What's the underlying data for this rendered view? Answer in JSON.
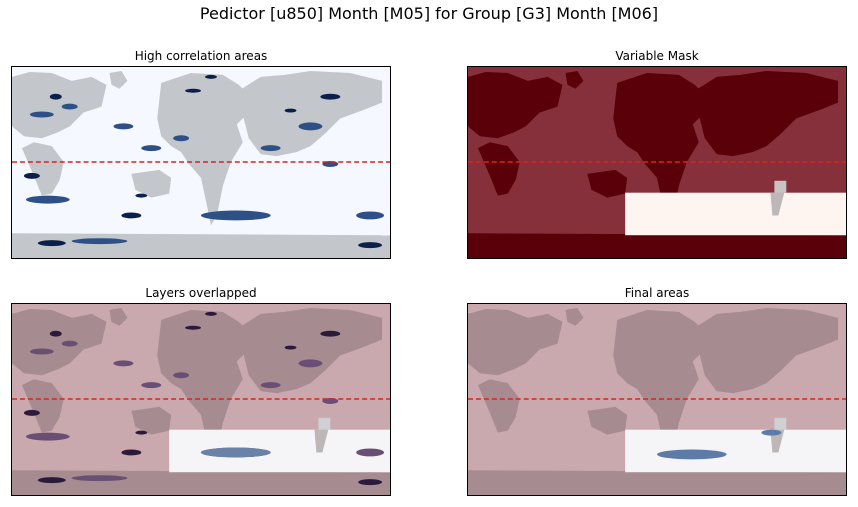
{
  "suptitle": "Pedictor [u850] Month [M05] for Group [G3] Month [M06]",
  "panels": [
    {
      "title": "High correlation areas",
      "mode": "corr"
    },
    {
      "title": "Variable Mask",
      "mode": "mask"
    },
    {
      "title": "Layers overlapped",
      "mode": "overlap"
    },
    {
      "title": "Final areas",
      "mode": "final"
    }
  ],
  "chart_data": {
    "type": "heatmap",
    "equator_line": {
      "color": "#e02020",
      "style": "dashed"
    },
    "colors": {
      "ocean_corr": "#f5f9ff",
      "land_corr": "#c3c6ca",
      "pos_corr": "#2f5086",
      "neg_corr": "#0a1f4a",
      "mask_dark": "#5a0009",
      "mask_mid": "#85303a",
      "mask_sel": "#fff5f0",
      "overlap_bg": "#c9a8ae",
      "overlap_land": "#a68b90",
      "overlap_sel": "#f5f5f7"
    }
  }
}
